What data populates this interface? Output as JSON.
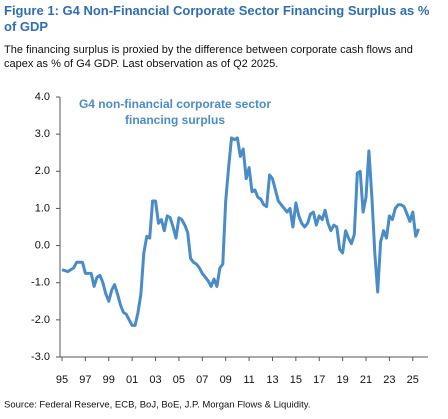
{
  "chart_data": {
    "type": "line",
    "title": "Figure 1: G4 Non-Financial Corporate Sector Financing Surplus as % of GDP",
    "subtitle": "The financing surplus is proxied by the difference between corporate cash flows and capex as % of G4 GDP. Last observation as of Q2 2025.",
    "source": "Source: Federal Reserve, ECB, BoJ, BoE, J.P. Morgan Flows & Liquidity.",
    "annotation": [
      "G4 non-financial corporate sector",
      "financing surplus"
    ],
    "x": [
      1995.0,
      1995.5,
      1996.0,
      1996.25,
      1996.75,
      1997.0,
      1997.5,
      1997.75,
      1998.0,
      1998.25,
      1998.5,
      1998.75,
      1999.0,
      1999.25,
      1999.5,
      1999.75,
      2000.0,
      2000.25,
      2000.5,
      2000.75,
      2001.0,
      2001.25,
      2001.5,
      2001.75,
      2002.0,
      2002.25,
      2002.5,
      2002.75,
      2003.0,
      2003.25,
      2003.5,
      2003.75,
      2004.0,
      2004.25,
      2004.5,
      2004.75,
      2005.0,
      2005.25,
      2005.5,
      2005.75,
      2006.0,
      2006.25,
      2006.5,
      2006.75,
      2007.0,
      2007.25,
      2007.5,
      2007.75,
      2008.0,
      2008.25,
      2008.5,
      2008.75,
      2009.0,
      2009.25,
      2009.5,
      2009.75,
      2010.0,
      2010.25,
      2010.5,
      2010.75,
      2011.0,
      2011.25,
      2011.5,
      2011.75,
      2012.0,
      2012.25,
      2012.5,
      2012.75,
      2013.0,
      2013.25,
      2013.5,
      2013.75,
      2014.0,
      2014.25,
      2014.5,
      2014.75,
      2015.0,
      2015.25,
      2015.5,
      2015.75,
      2016.0,
      2016.25,
      2016.5,
      2016.75,
      2017.0,
      2017.25,
      2017.5,
      2017.75,
      2018.0,
      2018.25,
      2018.5,
      2018.75,
      2019.0,
      2019.25,
      2019.5,
      2019.75,
      2020.0,
      2020.25,
      2020.5,
      2020.75,
      2021.0,
      2021.25,
      2021.5,
      2021.75,
      2022.0,
      2022.25,
      2022.5,
      2022.75,
      2023.0,
      2023.25,
      2023.5,
      2023.75,
      2024.0,
      2024.25,
      2024.5,
      2024.75,
      2025.0,
      2025.25,
      2025.5
    ],
    "series": [
      {
        "name": "G4 non-financial corporate sector financing surplus",
        "color": "#4a8cc7",
        "values": [
          -0.65,
          -0.7,
          -0.6,
          -0.45,
          -0.45,
          -0.75,
          -0.75,
          -1.1,
          -0.85,
          -0.8,
          -1.0,
          -1.3,
          -1.5,
          -1.2,
          -1.05,
          -1.3,
          -1.6,
          -1.8,
          -1.85,
          -2.0,
          -2.15,
          -2.15,
          -1.8,
          -1.3,
          -0.2,
          0.25,
          0.2,
          1.2,
          1.2,
          0.6,
          0.7,
          0.4,
          0.8,
          0.75,
          0.5,
          0.2,
          0.75,
          0.7,
          0.55,
          0.35,
          -0.35,
          -0.45,
          -0.5,
          -0.6,
          -0.75,
          -0.85,
          -0.95,
          -1.1,
          -0.9,
          -1.1,
          -0.6,
          -0.5,
          1.2,
          2.1,
          2.9,
          2.85,
          2.9,
          2.4,
          2.6,
          1.8,
          2.1,
          1.45,
          1.5,
          1.3,
          1.25,
          1.1,
          1.05,
          1.9,
          1.8,
          1.5,
          1.2,
          1.1,
          1.0,
          0.9,
          1.0,
          0.5,
          1.15,
          0.8,
          0.6,
          0.5,
          0.6,
          0.85,
          0.9,
          0.55,
          0.8,
          0.7,
          0.95,
          0.6,
          0.4,
          0.55,
          0.5,
          -0.1,
          -0.2,
          0.4,
          0.2,
          0.05,
          0.3,
          1.95,
          2.0,
          0.9,
          1.3,
          2.55,
          1.3,
          -0.2,
          -1.25,
          0.1,
          0.4,
          0.2,
          0.8,
          0.7,
          1.0,
          1.1,
          1.1,
          1.05,
          0.85,
          0.65,
          0.9,
          0.25,
          0.45
        ]
      }
    ],
    "xlim": [
      1994.83,
      2026.3
    ],
    "xticks": [
      {
        "value": 1995,
        "label": "95"
      },
      {
        "value": 1997,
        "label": "97"
      },
      {
        "value": 1999,
        "label": "99"
      },
      {
        "value": 2001,
        "label": "01"
      },
      {
        "value": 2003,
        "label": "03"
      },
      {
        "value": 2005,
        "label": "05"
      },
      {
        "value": 2007,
        "label": "07"
      },
      {
        "value": 2009,
        "label": "09"
      },
      {
        "value": 2011,
        "label": "11"
      },
      {
        "value": 2013,
        "label": "13"
      },
      {
        "value": 2015,
        "label": "15"
      },
      {
        "value": 2017,
        "label": "17"
      },
      {
        "value": 2019,
        "label": "19"
      },
      {
        "value": 2021,
        "label": "21"
      },
      {
        "value": 2023,
        "label": "23"
      },
      {
        "value": 2025,
        "label": "25"
      }
    ],
    "ylim": [
      -3,
      4
    ],
    "yticks": [
      {
        "value": 4,
        "label": "4.0"
      },
      {
        "value": 3,
        "label": "3.0"
      },
      {
        "value": 2,
        "label": "2.0"
      },
      {
        "value": 1,
        "label": "1.0"
      },
      {
        "value": 0,
        "label": "0.0"
      },
      {
        "value": -1,
        "label": "-1.0"
      },
      {
        "value": -2,
        "label": "-2.0"
      },
      {
        "value": -3,
        "label": "-3.0"
      }
    ],
    "grid": false
  }
}
